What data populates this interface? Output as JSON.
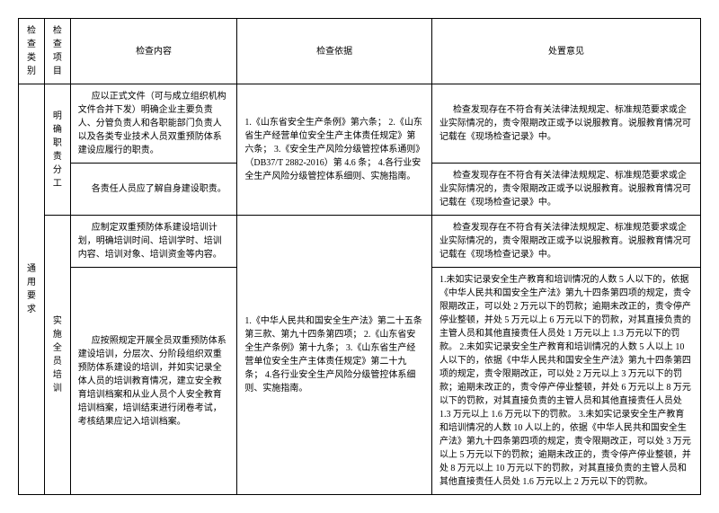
{
  "headers": {
    "category": "检查类别",
    "item": "检查项目",
    "content": "检查内容",
    "basis": "检查依据",
    "opinion": "处置意见"
  },
  "category": "通用要求",
  "item1": "明确职责分工",
  "item2": "实施全员培训",
  "row1": {
    "content": "应以正式文件（可与成立组织机构文件合并下发）明确企业主要负责人、分管负责人和各职能部门负责人以及各类专业技术人员双重预防体系建设应履行的职责。",
    "opinion": "检查发现存在不符合有关法律法规规定、标准规范要求或企业实际情况的，责令限期改正或予以说服教育。说服教育情况可记载在《现场检查记录》中。"
  },
  "basis12": "1.《山东省安全生产条例》第六条；\n2.《山东省生产经营单位安全生产主体责任规定》第六条；\n3.《安全生产风险分级管控体系通则》（DB37/T 2882-2016）第 4.6 条；\n4.各行业安全生产风险分级管控体系细则、实施指南。",
  "row2": {
    "content": "各责任人员应了解自身建设职责。",
    "opinion": "检查发现存在不符合有关法律法规规定、标准规范要求或企业实际情况的，责令限期改正或予以说服教育。说服教育情况可记载在《现场检查记录》中。"
  },
  "row3": {
    "content": "应制定双重预防体系建设培训计划，明确培训时间、培训学时、培训内容、培训对象、培训资金等内容。",
    "opinion": "检查发现存在不符合有关法律法规规定、标准规范要求或企业实际情况的，责令限期改正或予以说服教育。说服教育情况可记载在《现场检查记录》中。"
  },
  "basis34": "1.《中华人民共和国安全生产法》第二十五条第三款、第九十四条第四项；\n2.《山东省安全生产条例》第十九条；\n3.《山东省生产经营单位安全生产主体责任规定》第二十九条；\n4.各行业安全生产风险分级管控体系细则、实施指南。",
  "row4": {
    "content": "应按照规定开展全员双重预防体系建设培训，分层次、分阶段组织双重预防体系建设的培训，并如实记录全体人员的培训教育情况，建立安全教育培训档案和从业人员个人安全教育培训档案，培训结束进行闭卷考试，考核结果应记入培训档案。",
    "opinion": "1.未如实记录安全生产教育和培训情况的人数 5 人以下的，依据《中华人民共和国安全生产法》第九十四条第四项的规定，责令限期改正，可以处 2 万元以下的罚款；逾期未改正的，责令停产停业整顿，并处 5 万元以上 6 万元以下的罚款，对其直接负责的主管人员和其他直接责任人员处 1 万元以上 1.3 万元以下的罚款。\n2.未如实记录安全生产教育和培训情况的人数 5 人以上 10 人以下的，依据《中华人民共和国安全生产法》第九十四条第四项的规定，责令限期改正，可以处 2 万元以上 3 万元以下的罚款；逾期未改正的，责令停产停业整顿，并处 6 万元以上 8 万元以下的罚款，对其直接负责的主管人员和其他直接责任人员处 1.3 万元以上 1.6 万元以下的罚款。\n3.未如实记录安全生产教育和培训情况的人数 10 人以上的，依据《中华人民共和国安全生产法》第九十四条第四项的规定，责令限期改正，可以处 3 万元以上 5 万元以下的罚款；逾期未改正的，责令停产停业整顿，并处 8 万元以上 10 万元以下的罚款，对其直接负责的主管人员和其他直接责任人员处 1.6 万元以上 2 万元以下的罚款。"
  }
}
